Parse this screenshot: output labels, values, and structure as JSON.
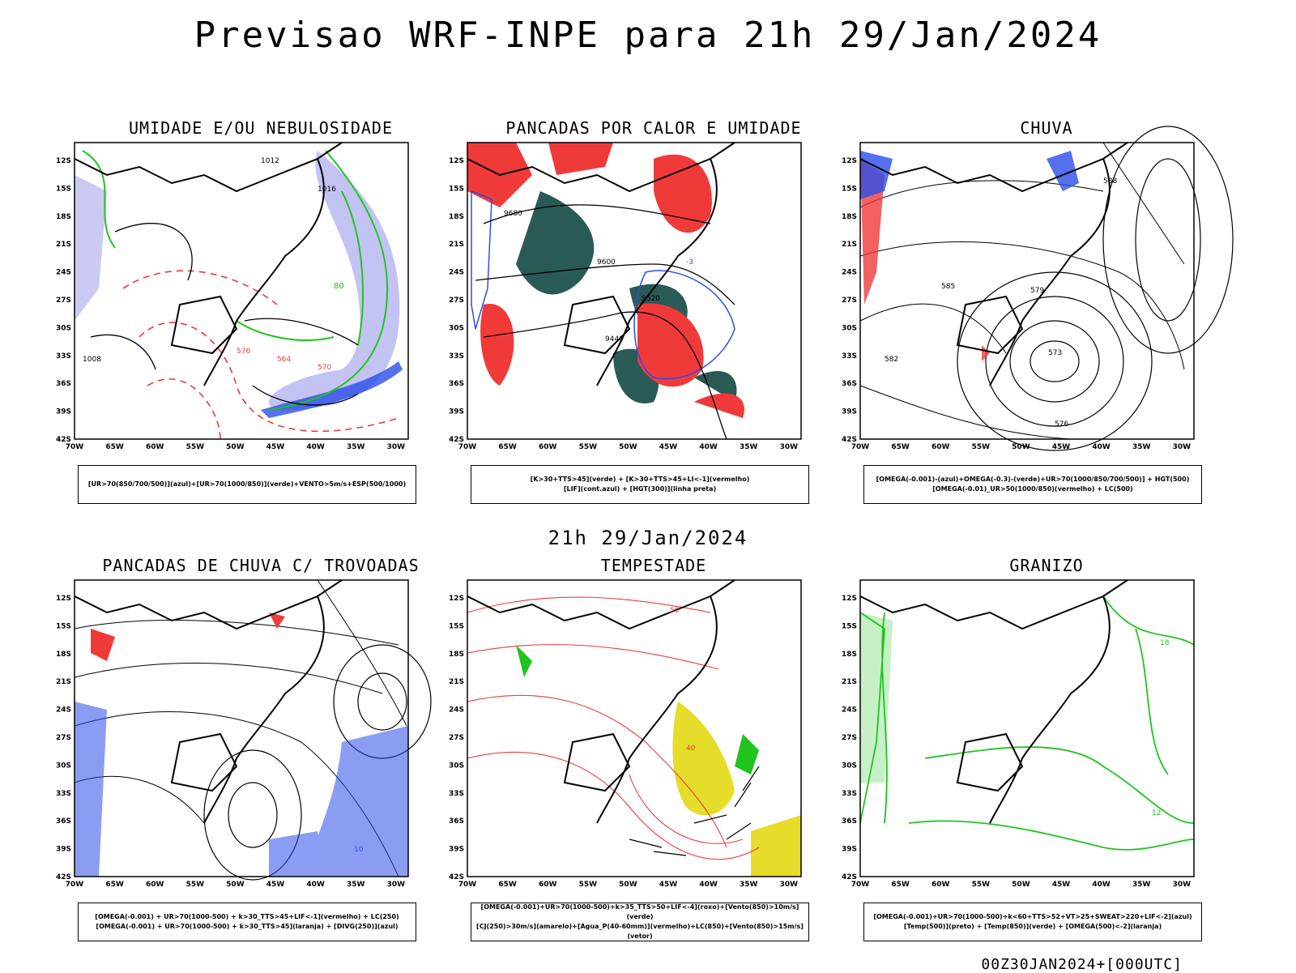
{
  "header": {
    "title": "Previsao WRF-INPE  para 21h 29/Jan/2024"
  },
  "middle_label": "21h 29/Jan/2024",
  "footer": "00Z30JAN2024+[000UTC]",
  "axes": {
    "lat_labels": [
      "12S",
      "15S",
      "18S",
      "21S",
      "24S",
      "27S",
      "30S",
      "33S",
      "36S",
      "39S",
      "42S"
    ],
    "lon_labels": [
      "70W",
      "65W",
      "60W",
      "55W",
      "50W",
      "45W",
      "40W",
      "35W",
      "30W"
    ]
  },
  "panels": [
    {
      "id": "umidade",
      "title": "UMIDADE E/OU NEBULOSIDADE",
      "legend": [
        "[UR>70(850/700/500)](azul)+[UR>70(1000/850)](verde)+VENTO>5m/s+ESP(500/1000)"
      ],
      "contour_labels": [
        "1012",
        "1016",
        "1008",
        "576",
        "570",
        "564",
        "80"
      ]
    },
    {
      "id": "pancadas",
      "title": "PANCADAS POR CALOR E UMIDADE",
      "legend": [
        "[K>30+TTS>45](verde) + [K>30+TTS>45+LI<-1](vermelho)",
        "[LIF](cont.azul) + [HGT(300)](linha preta)"
      ],
      "contour_labels": [
        "9680",
        "9600",
        "9520",
        "9440",
        "-3"
      ]
    },
    {
      "id": "chuva",
      "title": "CHUVA",
      "legend": [
        "[OMEGA(-0.001)-(azul)+OMEGA(-0.3)-(verde)+UR>70(1000/850/700/500)] + HGT(500)",
        "[OMEGA(-0.01)_UR>50(1000/850)(vermelho) + LC(500)"
      ],
      "contour_labels": [
        "588",
        "585",
        "582",
        "579",
        "576",
        "573"
      ]
    },
    {
      "id": "trovoadas",
      "title": "PANCADAS DE CHUVA C/ TROVOADAS",
      "legend": [
        "[OMEGA(-0.001) + UR>70(1000-500) + k>30_TTS>45+LIF<-1](vermelho) + LC(250)",
        "[OMEGA(-0.001) + UR>70(1000-500) + k>30_TTS>45](laranja) + [DIVG(250)](azul)"
      ],
      "contour_labels": [
        "10"
      ]
    },
    {
      "id": "tempestade",
      "title": "TEMPESTADE",
      "legend": [
        "[OMEGA(-0.001)+UR>70(1000-500)+k>35_TTS>50+LIF<-4](roxo)+[Vento(850)>10m/s](verde)",
        "[CJ(250)>30m/s](amarelo)+[Agua_P(40-60mm)](vermelho)+LC(850)+[Vento(850)>15m/s](vetor)"
      ],
      "contour_labels": [
        "40",
        "50"
      ]
    },
    {
      "id": "granizo",
      "title": "GRANIZO",
      "legend": [
        "[OMEGA(-0.001)+UR>70(1000-500)+k<60+TTS>52+VT>25+SWEAT>220+LIF<-2](azul)",
        "[Temp(500)](preto) + [Temp(850)](verde) + [OMEGA(500)<-2](laranja)"
      ],
      "contour_labels": [
        "12",
        "18"
      ]
    }
  ],
  "colors": {
    "blue": "#2b4de8",
    "green": "#1fc41f",
    "red": "#f03a3a",
    "darkgreen": "#2a5a55",
    "lavender": "#b4b4f0",
    "yellow": "#e6dc2a"
  }
}
